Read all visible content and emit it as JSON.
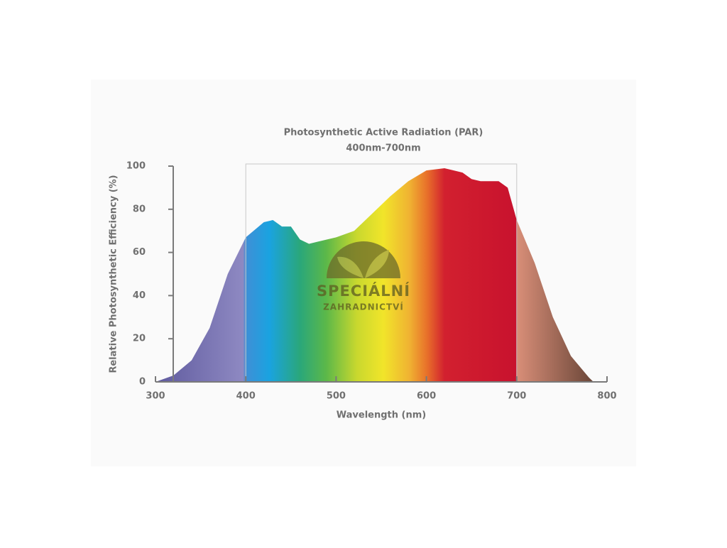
{
  "chart_data": {
    "type": "area",
    "title": "Photosynthetic Active Radiation (PAR)",
    "subtitle": "400nm-700nm",
    "x_label": "Wavelength (nm)",
    "y_label": "Relative Photosynthetic Efficiency (%)",
    "x": [
      300,
      320,
      340,
      360,
      380,
      400,
      420,
      430,
      440,
      450,
      460,
      470,
      480,
      500,
      520,
      540,
      560,
      580,
      600,
      620,
      640,
      650,
      660,
      680,
      690,
      700,
      720,
      740,
      760,
      780,
      785
    ],
    "values": [
      0,
      3,
      10,
      25,
      50,
      67,
      74,
      75,
      72,
      72,
      66,
      64,
      65,
      67,
      70,
      78,
      86,
      93,
      98,
      99,
      97,
      94,
      93,
      93,
      90,
      75,
      55,
      30,
      12,
      2,
      0
    ],
    "highlight": [
      400,
      700
    ],
    "xlim": [
      300,
      800
    ],
    "xticks": [
      300,
      400,
      500,
      600,
      700,
      800
    ],
    "ylim": [
      0,
      100
    ],
    "yticks": [
      0,
      20,
      40,
      60,
      80,
      100
    ],
    "watermark": [
      "SPECIÁLNÍ",
      "ZAHRADNICTVÍ"
    ]
  }
}
